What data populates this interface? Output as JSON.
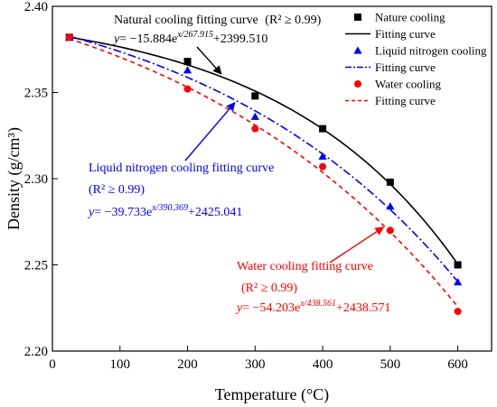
{
  "chart_data": {
    "type": "scatter",
    "xlabel": "Temperature (°C)",
    "ylabel": "Density (g/cm³)",
    "xlim": [
      0,
      650
    ],
    "ylim": [
      2.2,
      2.4
    ],
    "x_ticks": [
      "0",
      "100",
      "200",
      "300",
      "400",
      "500",
      "600"
    ],
    "y_ticks": [
      "2.20",
      "2.25",
      "2.30",
      "2.35",
      "2.40"
    ],
    "grid": false,
    "legend_position": "top-right",
    "series": [
      {
        "name": "Nature cooling",
        "marker": "square",
        "color": "#000000",
        "fit_name": "Fitting curve",
        "fit_style": "solid",
        "x": [
          25,
          200,
          300,
          400,
          500,
          600
        ],
        "y": [
          2.382,
          2.368,
          2.348,
          2.329,
          2.298,
          2.25
        ],
        "fit": {
          "A": -15.884,
          "t": 267.915,
          "y0": 2399.51
        }
      },
      {
        "name": "Liquid nitrogen cooling",
        "marker": "triangle",
        "color": "#0000ff",
        "fit_name": "Fitting curve",
        "fit_style": "dashdot",
        "x": [
          25,
          200,
          300,
          400,
          500,
          600
        ],
        "y": [
          2.382,
          2.363,
          2.336,
          2.313,
          2.284,
          2.24
        ],
        "fit": {
          "A": -39.733,
          "t": 390.369,
          "y0": 2425.041
        }
      },
      {
        "name": "Water cooling",
        "marker": "circle",
        "color": "#ff0000",
        "fit_name": "Fitting curve",
        "fit_style": "dash",
        "x": [
          25,
          200,
          300,
          400,
          500,
          600
        ],
        "y": [
          2.382,
          2.352,
          2.329,
          2.307,
          2.27,
          2.223
        ],
        "fit": {
          "A": -54.203,
          "t": 438.561,
          "y0": 2438.571
        }
      }
    ],
    "annotations": [
      {
        "color": "#000000",
        "title": "Natural cooling fitting curve",
        "r2": "(R² ≥ 0.99)",
        "eq_y": "y",
        "eq_mid": "= −15.884e",
        "eq_exp": "x/267.915",
        "eq_end": "+2399.510"
      },
      {
        "color": "#0000ff",
        "title": "Liquid nitrogen cooling fitting curve",
        "r2": "(R² ≥ 0.99)",
        "eq_y": "y",
        "eq_mid": "= −39.733e",
        "eq_exp": "x/390.369",
        "eq_end": "+2425.041"
      },
      {
        "color": "#ff0000",
        "title": "Water cooling fitting curve",
        "r2": "(R² ≥ 0.99)",
        "eq_y": "y",
        "eq_mid": "= −54.203e",
        "eq_exp": "x/438.561",
        "eq_end": "+2438.571"
      }
    ]
  }
}
